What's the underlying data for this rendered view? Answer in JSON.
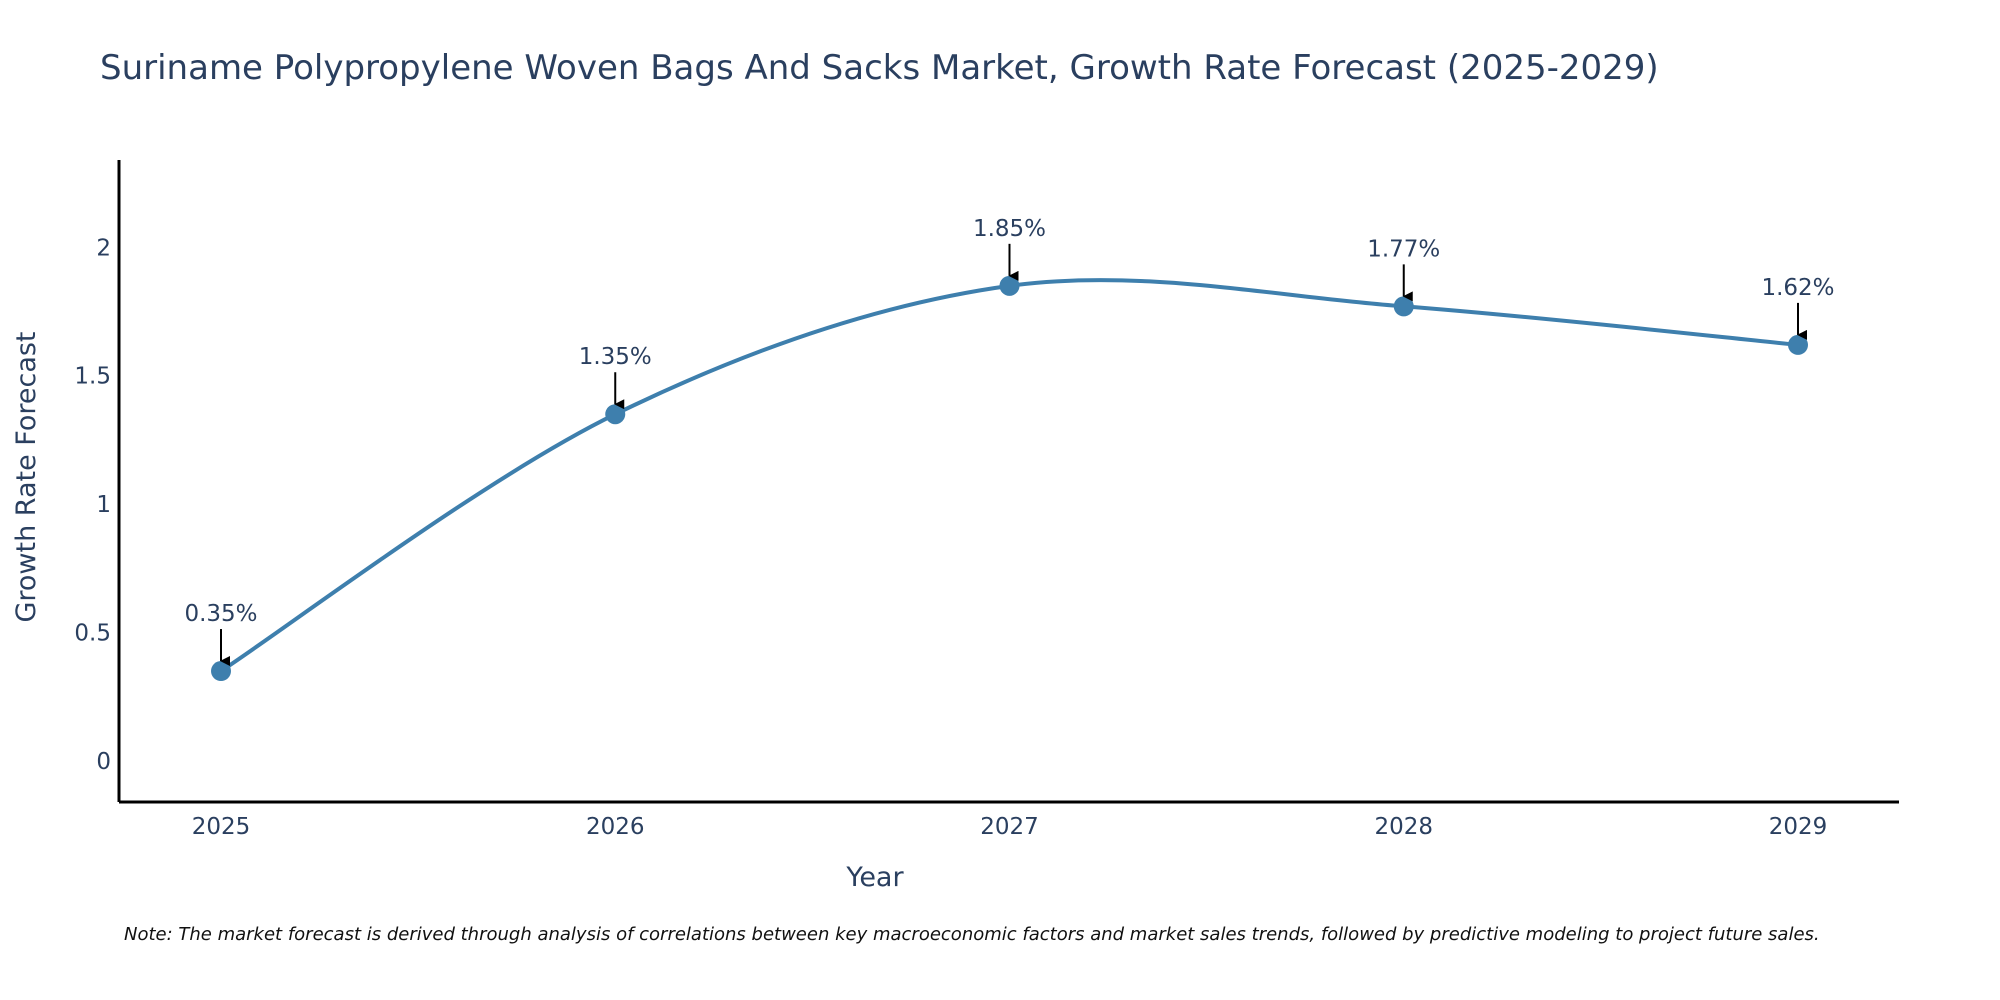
{
  "chart_data": {
    "type": "line",
    "title": "Suriname Polypropylene Woven Bags And Sacks Market, Growth Rate Forecast (2025-2029)",
    "xlabel": "Year",
    "ylabel": "Growth Rate Forecast",
    "categories": [
      "2025",
      "2026",
      "2027",
      "2028",
      "2029"
    ],
    "values": [
      0.35,
      1.35,
      1.85,
      1.77,
      1.62
    ],
    "data_labels": [
      "0.35%",
      "1.35%",
      "1.85%",
      "1.77%",
      "1.62%"
    ],
    "yticks": [
      0,
      0.5,
      1,
      1.5,
      2
    ],
    "ytick_labels": [
      "0",
      "0.5",
      "1",
      "1.5",
      "2"
    ],
    "ylim": [
      -0.16,
      2.34
    ],
    "grid": false,
    "line_shape": "spline",
    "line_color": "#3e7fad",
    "marker_color": "#3e7fad",
    "note": "Note: The market forecast is derived through analysis of correlations between key macroeconomic factors and market sales trends, followed by predictive modeling to project future sales."
  }
}
